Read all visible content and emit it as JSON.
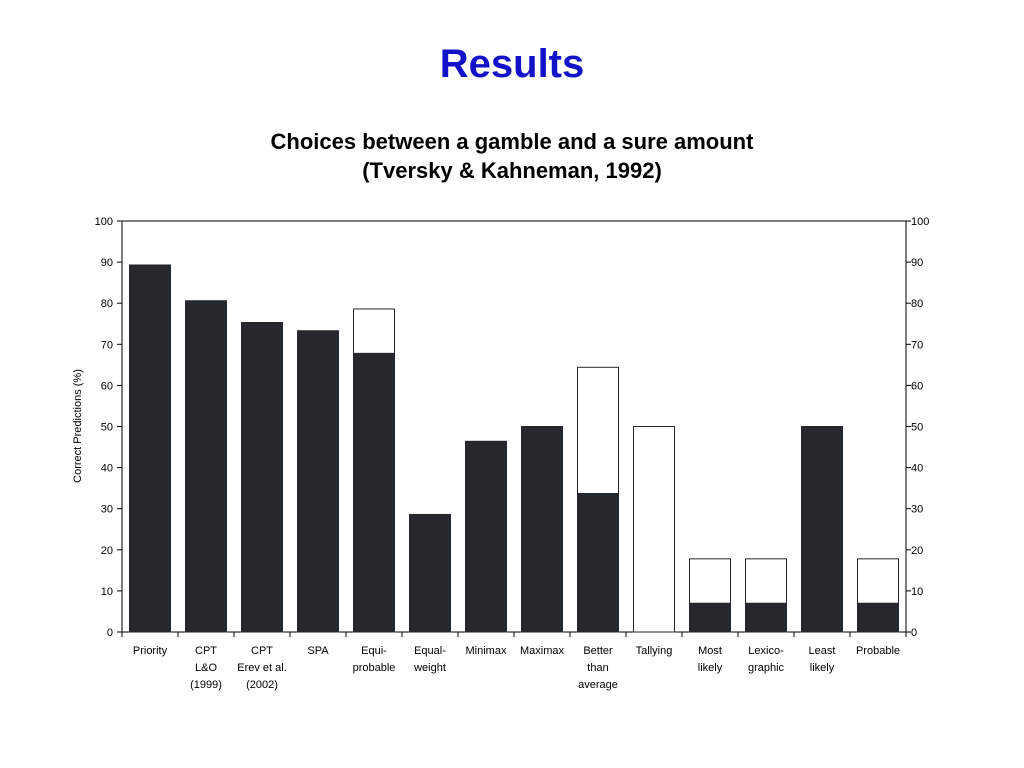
{
  "slide": {
    "title": "Results"
  },
  "chart_data": {
    "type": "bar",
    "stacked": true,
    "title_line1": "Choices between a gamble and a sure amount",
    "title_line2": "(Tversky & Kahneman, 1992)",
    "ylabel": "Correct Predictions (%)",
    "xlabel": "",
    "ylim": [
      0,
      100
    ],
    "yticks": [
      0,
      10,
      20,
      30,
      40,
      50,
      60,
      70,
      80,
      90,
      100
    ],
    "grid": false,
    "categories": [
      [
        "Priority"
      ],
      [
        "CPT",
        "L&O",
        "(1999)"
      ],
      [
        "CPT",
        "Erev et al.",
        "(2002)"
      ],
      [
        "SPA"
      ],
      [
        "Equi-",
        "probable"
      ],
      [
        "Equal-",
        "weight"
      ],
      [
        "Minimax"
      ],
      [
        "Maximax"
      ],
      [
        "Better",
        "than",
        "average"
      ],
      [
        "Tallying"
      ],
      [
        "Most",
        "likely"
      ],
      [
        "Lexico-",
        "graphic"
      ],
      [
        "Least",
        "likely"
      ],
      [
        "Probable"
      ]
    ],
    "series": [
      {
        "color": "#25292d",
        "values": [
          89.3,
          80.6,
          75.3,
          73.3,
          67.8,
          28.6,
          46.4,
          50.0,
          33.7,
          0,
          7.0,
          7.0,
          50.0,
          7.0
        ]
      },
      {
        "color": "#ffffff",
        "values": [
          0,
          0,
          0,
          0,
          10.8,
          0,
          0,
          0,
          30.7,
          50.0,
          10.8,
          10.8,
          0,
          10.8
        ]
      }
    ]
  }
}
